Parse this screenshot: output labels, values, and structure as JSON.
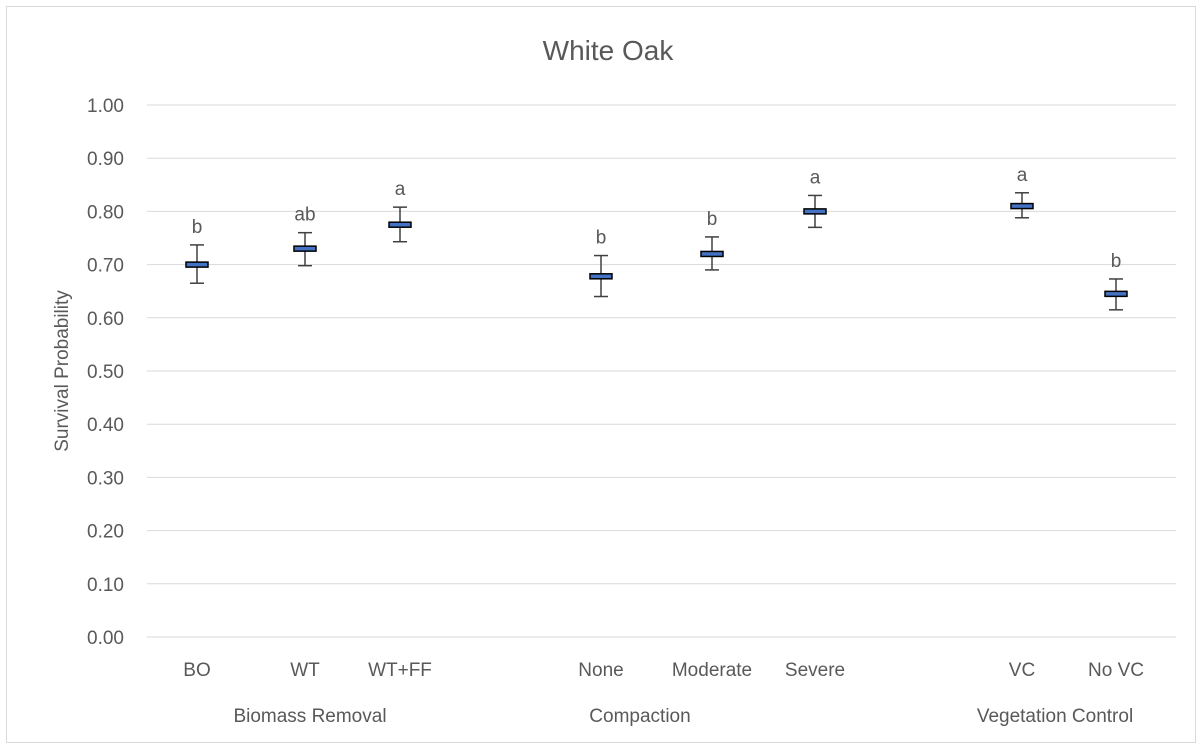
{
  "chart_data": {
    "type": "box",
    "title": "White Oak",
    "ylabel": "Survival Probability",
    "xlabel": "",
    "ylim": [
      0,
      1.0
    ],
    "yticks": [
      "0.00",
      "0.10",
      "0.20",
      "0.30",
      "0.40",
      "0.50",
      "0.60",
      "0.70",
      "0.80",
      "0.90",
      "1.00"
    ],
    "grid": true,
    "groups": [
      {
        "name": "Biomass Removal",
        "categories": [
          {
            "label": "BO",
            "estimate": 0.7,
            "lower": 0.665,
            "upper": 0.737,
            "letter": "b"
          },
          {
            "label": "WT",
            "estimate": 0.73,
            "lower": 0.698,
            "upper": 0.76,
            "letter": "ab"
          },
          {
            "label": "WT+FF",
            "estimate": 0.775,
            "lower": 0.743,
            "upper": 0.808,
            "letter": "a"
          }
        ]
      },
      {
        "name": "Compaction",
        "categories": [
          {
            "label": "None",
            "estimate": 0.678,
            "lower": 0.64,
            "upper": 0.717,
            "letter": "b"
          },
          {
            "label": "Moderate",
            "estimate": 0.72,
            "lower": 0.69,
            "upper": 0.752,
            "letter": "b"
          },
          {
            "label": "Severe",
            "estimate": 0.8,
            "lower": 0.77,
            "upper": 0.83,
            "letter": "a"
          }
        ]
      },
      {
        "name": "Vegetation Control",
        "categories": [
          {
            "label": "VC",
            "estimate": 0.81,
            "lower": 0.788,
            "upper": 0.835,
            "letter": "a"
          },
          {
            "label": "No VC",
            "estimate": 0.645,
            "lower": 0.615,
            "upper": 0.673,
            "letter": "b"
          }
        ]
      }
    ],
    "colors": {
      "box_fill": "#4472c4",
      "box_edge": "#000000",
      "whisker": "#404040",
      "grid": "#d9d9d9",
      "text": "#595959"
    }
  }
}
